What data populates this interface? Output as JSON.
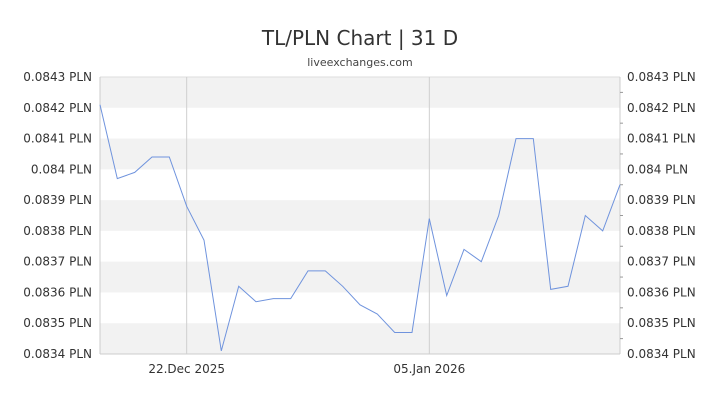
{
  "chart_data": {
    "type": "line",
    "title": "TL/PLN Chart | 31 D",
    "subtitle": "liveexchanges.com",
    "xlabel": "",
    "ylabel": "",
    "ylim": [
      0.0834,
      0.0843
    ],
    "y_ticks": [
      0.0834,
      0.0835,
      0.0836,
      0.0837,
      0.0838,
      0.0839,
      0.084,
      0.0841,
      0.0842,
      0.0843
    ],
    "y_tick_labels_left": [
      "0.0834 PLN",
      "0.0835 PLN",
      "0.0836 PLN",
      "0.0837 PLN",
      "0.0838 PLN",
      "0.0839 PLN",
      "0.084 PLN",
      "0.0841 PLN",
      "0.0842 PLN",
      "0.0843 PLN"
    ],
    "y_tick_labels_right": [
      "0.0834 PLN",
      "0.0835 PLN",
      "0.0836 PLN",
      "0.0837 PLN",
      "0.0838 PLN",
      "0.0839 PLN",
      "0.084 PLN",
      "0.0841 PLN",
      "0.0842 PLN",
      "0.0843 PLN"
    ],
    "x_tick_labels": [
      {
        "label": "22.Dec 2025",
        "index": 5
      },
      {
        "label": "05.Jan 2026",
        "index": 19
      }
    ],
    "grid": true,
    "line_color": "#6f93dd",
    "values": [
      0.08421,
      0.08397,
      0.08399,
      0.08404,
      0.08404,
      0.08388,
      0.08377,
      0.08341,
      0.08362,
      0.08357,
      0.08358,
      0.08358,
      0.08367,
      0.08367,
      0.08362,
      0.08356,
      0.08353,
      0.08347,
      0.08347,
      0.08384,
      0.08359,
      0.08374,
      0.0837,
      0.08385,
      0.0841,
      0.0841,
      0.08361,
      0.08362,
      0.08385,
      0.0838,
      0.08395
    ]
  }
}
